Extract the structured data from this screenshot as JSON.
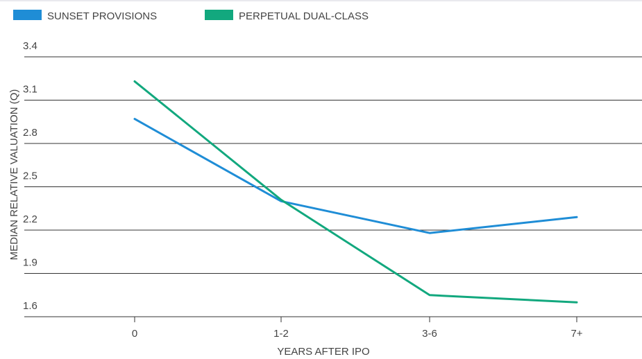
{
  "chart_data": {
    "type": "line",
    "categories": [
      "0",
      "1-2",
      "3-6",
      "7+"
    ],
    "series": [
      {
        "name": "SUNSET PROVISIONS",
        "values": [
          2.97,
          2.4,
          2.18,
          2.29
        ],
        "color": "#1f8dd6"
      },
      {
        "name": "PERPETUAL DUAL-CLASS",
        "values": [
          3.23,
          2.41,
          1.75,
          1.7
        ],
        "color": "#12a87e"
      }
    ],
    "xlabel": "YEARS AFTER IPO",
    "ylabel": "MEDIAN RELATIVE VALUATION (Q)",
    "yticks": [
      "3.4",
      "3.1",
      "2.8",
      "2.5",
      "2.2",
      "1.9",
      "1.6"
    ],
    "ylim": [
      1.6,
      3.4
    ],
    "grid": true,
    "legend": "top-left",
    "colors": {
      "grid": "#333333",
      "text": "#444444",
      "top_rule": "#e9e9ee"
    }
  }
}
